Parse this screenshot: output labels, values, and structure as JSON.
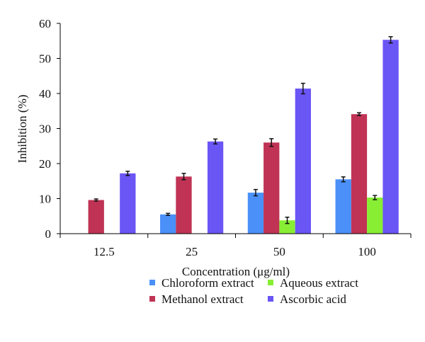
{
  "chart_data": {
    "type": "bar",
    "title": "",
    "xlabel": "Concentration (μg/ml)",
    "ylabel": "Inhibition (%)",
    "ylim": [
      0,
      60
    ],
    "yticks": [
      "0",
      "10",
      "20",
      "30",
      "40",
      "50",
      "60"
    ],
    "categories": [
      "12.5",
      "25",
      "50",
      "100"
    ],
    "grid": false,
    "legend_position": "bottom",
    "series": [
      {
        "name": "Chloroform extract",
        "color": "#4a90f8",
        "values": [
          0,
          5.5,
          11.7,
          15.5
        ],
        "errors": [
          0,
          0.3,
          0.9,
          0.7
        ]
      },
      {
        "name": "Methanol extract",
        "color": "#c03355",
        "values": [
          9.6,
          16.3,
          26.0,
          34.1
        ],
        "errors": [
          0.3,
          0.9,
          1.1,
          0.4
        ]
      },
      {
        "name": "Aqueous extract",
        "color": "#88ee33",
        "values": [
          0,
          0,
          3.8,
          10.3
        ],
        "errors": [
          0,
          0,
          0.9,
          0.6
        ]
      },
      {
        "name": "Ascorbic acid",
        "color": "#6a55f5",
        "values": [
          17.2,
          26.3,
          41.4,
          55.3
        ],
        "errors": [
          0.6,
          0.7,
          1.5,
          0.9
        ]
      }
    ]
  }
}
